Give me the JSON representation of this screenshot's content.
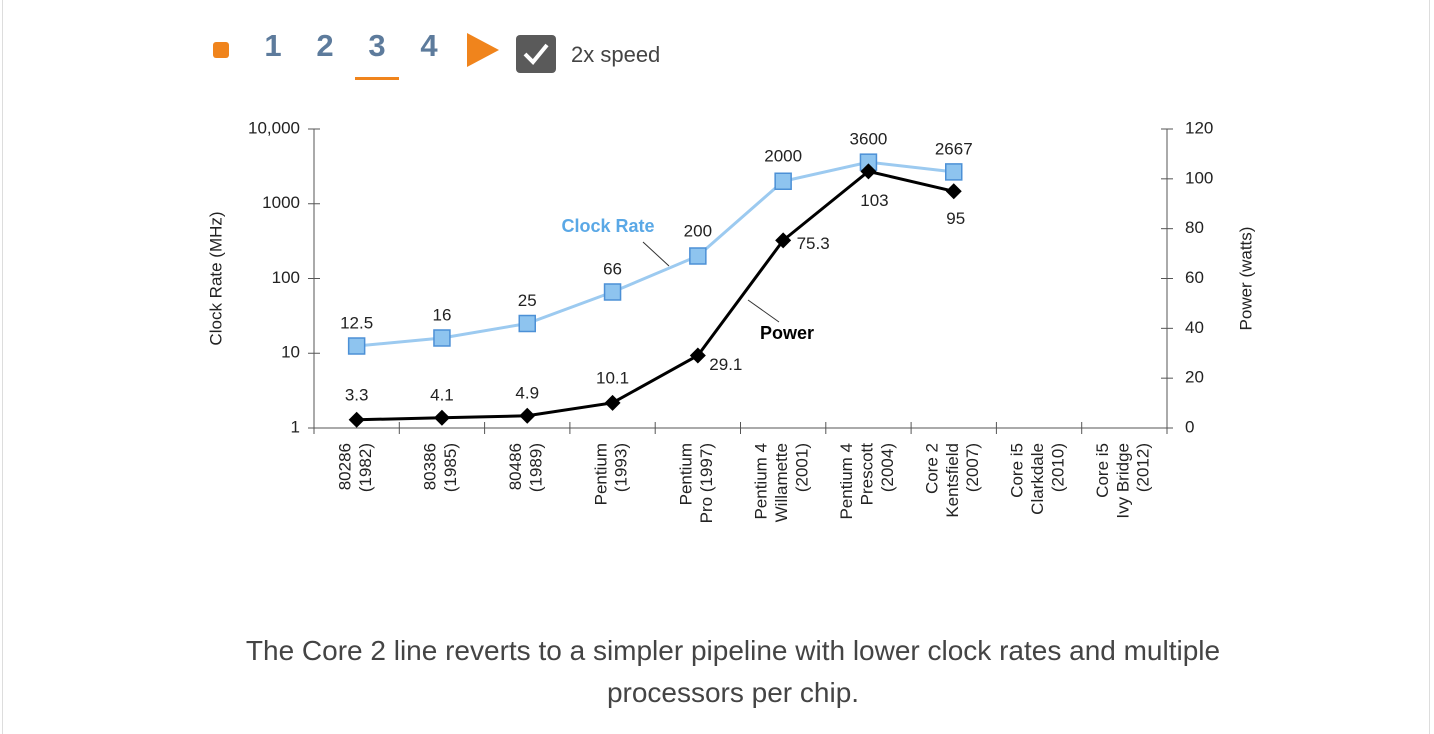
{
  "controls": {
    "steps": [
      "1",
      "2",
      "3",
      "4"
    ],
    "speed_label": "2x speed"
  },
  "chart_data": {
    "type": "line",
    "categories": [
      "80286\n(1982)",
      "80386\n(1985)",
      "80486\n(1989)",
      "Pentium\n(1993)",
      "Pentium\nPro (1997)",
      "Pentium 4\nWillamette\n(2001)",
      "Pentium 4\nPrescott\n(2004)",
      "Core 2\nKentsfield\n(2007)",
      "Core i5\nClarkdale\n(2010)",
      "Core i5\nIvy Bridge\n(2012)"
    ],
    "ylabel": "Clock Rate (MHz)",
    "y2label": "Power (watts)",
    "ylim": [
      1,
      10000
    ],
    "yscale": "log",
    "yticks": [
      1,
      10,
      100,
      1000,
      {
        "value": 10000,
        "label": "10,000"
      }
    ],
    "y2lim": [
      0,
      120
    ],
    "y2ticks": [
      0,
      20,
      40,
      60,
      80,
      100,
      120
    ],
    "series": [
      {
        "name": "Clock Rate",
        "color": "#5aa8e6",
        "values": [
          12.5,
          16,
          25,
          66,
          200,
          2000,
          3600,
          2667,
          null,
          null
        ]
      },
      {
        "name": "Power",
        "color": "#000000",
        "axis": "y2",
        "values": [
          3.3,
          4.1,
          4.9,
          10.1,
          29.1,
          75.3,
          103,
          95,
          null,
          null
        ]
      }
    ]
  },
  "caption": "The Core 2 line reverts to a simpler pipeline with lower clock rates and multiple processors per chip."
}
